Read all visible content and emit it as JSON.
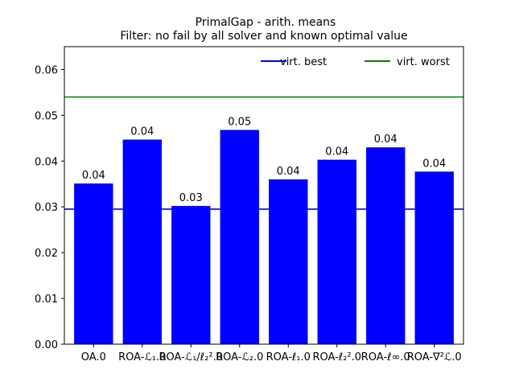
{
  "chart_data": {
    "type": "bar",
    "title": "PrimalGap - arith. means",
    "subtitle": "Filter: no fail by all solver and known optimal value",
    "xlabel": "",
    "ylabel": "",
    "ylim": [
      0,
      0.065
    ],
    "yticks": [
      0.0,
      0.01,
      0.02,
      0.03,
      0.04,
      0.05,
      0.06
    ],
    "ytick_labels": [
      "0.00",
      "0.01",
      "0.02",
      "0.03",
      "0.04",
      "0.05",
      "0.06"
    ],
    "categories": [
      "OA.0",
      "ROA-ℒ₁.0",
      "ROA-ℒ₁/ℓ₂².0",
      "ROA-ℒ₂.0",
      "ROA-ℓ₁.0",
      "ROA-ℓ₂².0",
      "ROA-ℓ∞.0",
      "ROA-∇²ℒ.0"
    ],
    "values": [
      0.0351,
      0.0447,
      0.0302,
      0.0468,
      0.036,
      0.0403,
      0.043,
      0.0377
    ],
    "data_labels": [
      "0.04",
      "0.04",
      "0.03",
      "0.05",
      "0.04",
      "0.04",
      "0.04",
      "0.04"
    ],
    "bar_color": "#0000ff",
    "reference_lines": [
      {
        "name": "virt. best",
        "value": 0.0295,
        "color": "#0000ff"
      },
      {
        "name": "virt. worst",
        "value": 0.054,
        "color": "#008000"
      }
    ],
    "legend": "top-right",
    "grid": false
  }
}
